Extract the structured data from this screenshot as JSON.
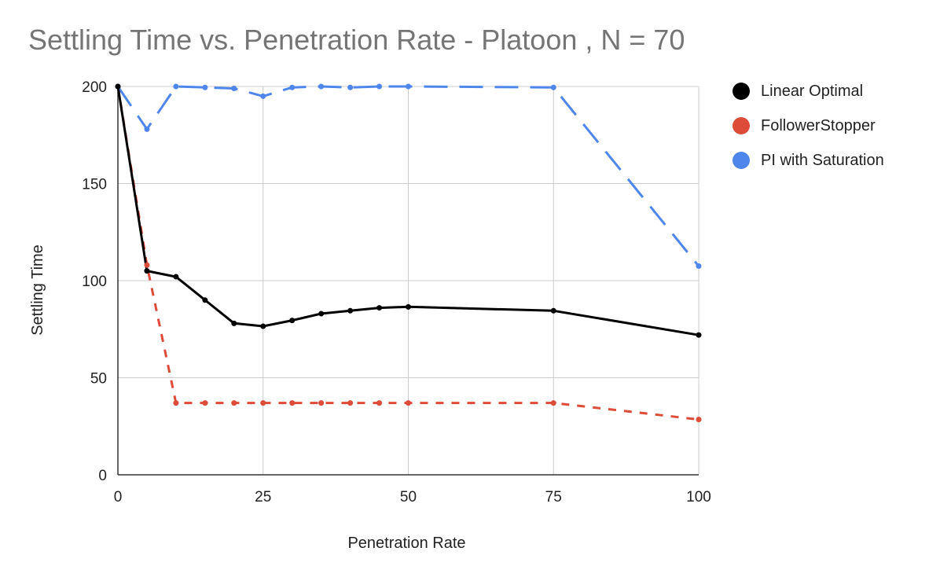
{
  "chart_data": {
    "type": "line",
    "title": "Settling Time vs. Penetration Rate - Platoon , N = 70",
    "xlabel": "Penetration Rate",
    "ylabel": "Settling Time",
    "xlim": [
      0,
      100
    ],
    "ylim": [
      0,
      200
    ],
    "xticks": [
      "0",
      "25",
      "50",
      "75",
      "100"
    ],
    "yticks": [
      "0",
      "50",
      "100",
      "150",
      "200"
    ],
    "grid": true,
    "legend_position": "right",
    "series": [
      {
        "name": "Linear Optimal",
        "color": "#000000",
        "dash": "solid",
        "x": [
          0,
          5,
          10,
          15,
          20,
          25,
          30,
          35,
          40,
          45,
          50,
          75,
          100
        ],
        "y": [
          200,
          105,
          102,
          90,
          78,
          76.5,
          79.5,
          83,
          84.5,
          86,
          86.5,
          84.5,
          72
        ]
      },
      {
        "name": "FollowerStopper",
        "color": "#dd4b39",
        "dash": "short",
        "x": [
          0,
          5,
          10,
          15,
          20,
          25,
          30,
          35,
          40,
          45,
          50,
          75,
          100
        ],
        "y": [
          200,
          108,
          37,
          37,
          37,
          37,
          37,
          37,
          37,
          37,
          37,
          37,
          28.5
        ]
      },
      {
        "name": "PI with Saturation",
        "color": "#4f86ec",
        "dash": "long",
        "x": [
          0,
          5,
          10,
          15,
          20,
          25,
          30,
          35,
          40,
          45,
          50,
          75,
          100
        ],
        "y": [
          200,
          178,
          200,
          199.5,
          199,
          195,
          199.5,
          200,
          199.5,
          200,
          200,
          199.5,
          107.5
        ]
      }
    ]
  }
}
